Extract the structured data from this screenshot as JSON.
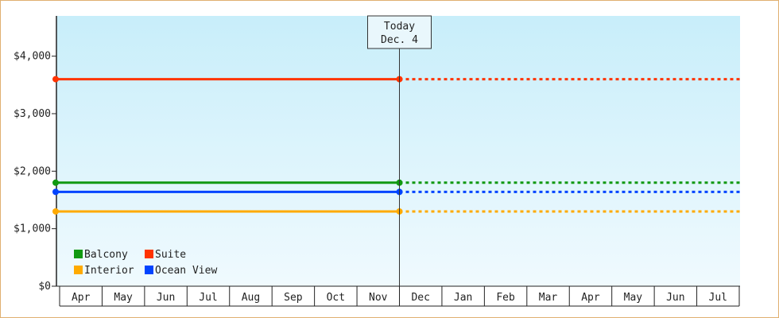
{
  "chart_data": {
    "type": "line",
    "categories": [
      "Apr",
      "May",
      "Jun",
      "Jul",
      "Aug",
      "Sep",
      "Oct",
      "Nov",
      "Dec",
      "Jan",
      "Feb",
      "Mar",
      "Apr",
      "May",
      "Jun",
      "Jul"
    ],
    "y_ticks": [
      "$0",
      "$1,000",
      "$2,000",
      "$3,000",
      "$4,000"
    ],
    "y_tick_values": [
      0,
      1000,
      2000,
      3000,
      4000
    ],
    "ylim": [
      0,
      4700
    ],
    "grid": false,
    "legend_position": "bottom-left",
    "today": {
      "line1": "Today",
      "line2": "Dec. 4",
      "category_index": 8
    },
    "series": [
      {
        "name": "Suite",
        "value": 3600,
        "color": "#ff3300"
      },
      {
        "name": "Balcony",
        "value": 1800,
        "color": "#119911"
      },
      {
        "name": "Ocean View",
        "value": 1640,
        "color": "#0044ff"
      },
      {
        "name": "Interior",
        "value": 1300,
        "color": "#ffaa00"
      }
    ],
    "legend": [
      {
        "name": "Balcony",
        "color": "#119911"
      },
      {
        "name": "Suite",
        "color": "#ff3300"
      },
      {
        "name": "Interior",
        "color": "#ffaa00"
      },
      {
        "name": "Ocean View",
        "color": "#0044ff"
      }
    ],
    "colors": {
      "plot_top": "#c8eefa",
      "plot_bottom": "#f0fafe",
      "frame_border": "#e0b070"
    }
  }
}
